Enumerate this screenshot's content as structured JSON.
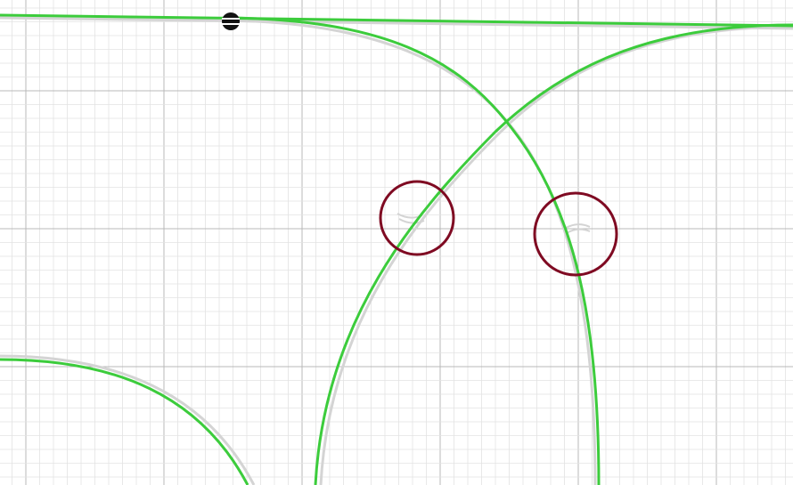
{
  "canvas": {
    "background": "#ffffff",
    "grid": {
      "minor_color": "#e3e3e3",
      "major_color": "#b8b8b8"
    }
  },
  "curves": {
    "colors": {
      "route": "#3ccc3c",
      "ghost": "#d4d4d4"
    }
  },
  "highlights": {
    "color": "#7f0a22",
    "count": 2
  },
  "point": {
    "fill": "#111111",
    "stripe": "#ffffff"
  }
}
